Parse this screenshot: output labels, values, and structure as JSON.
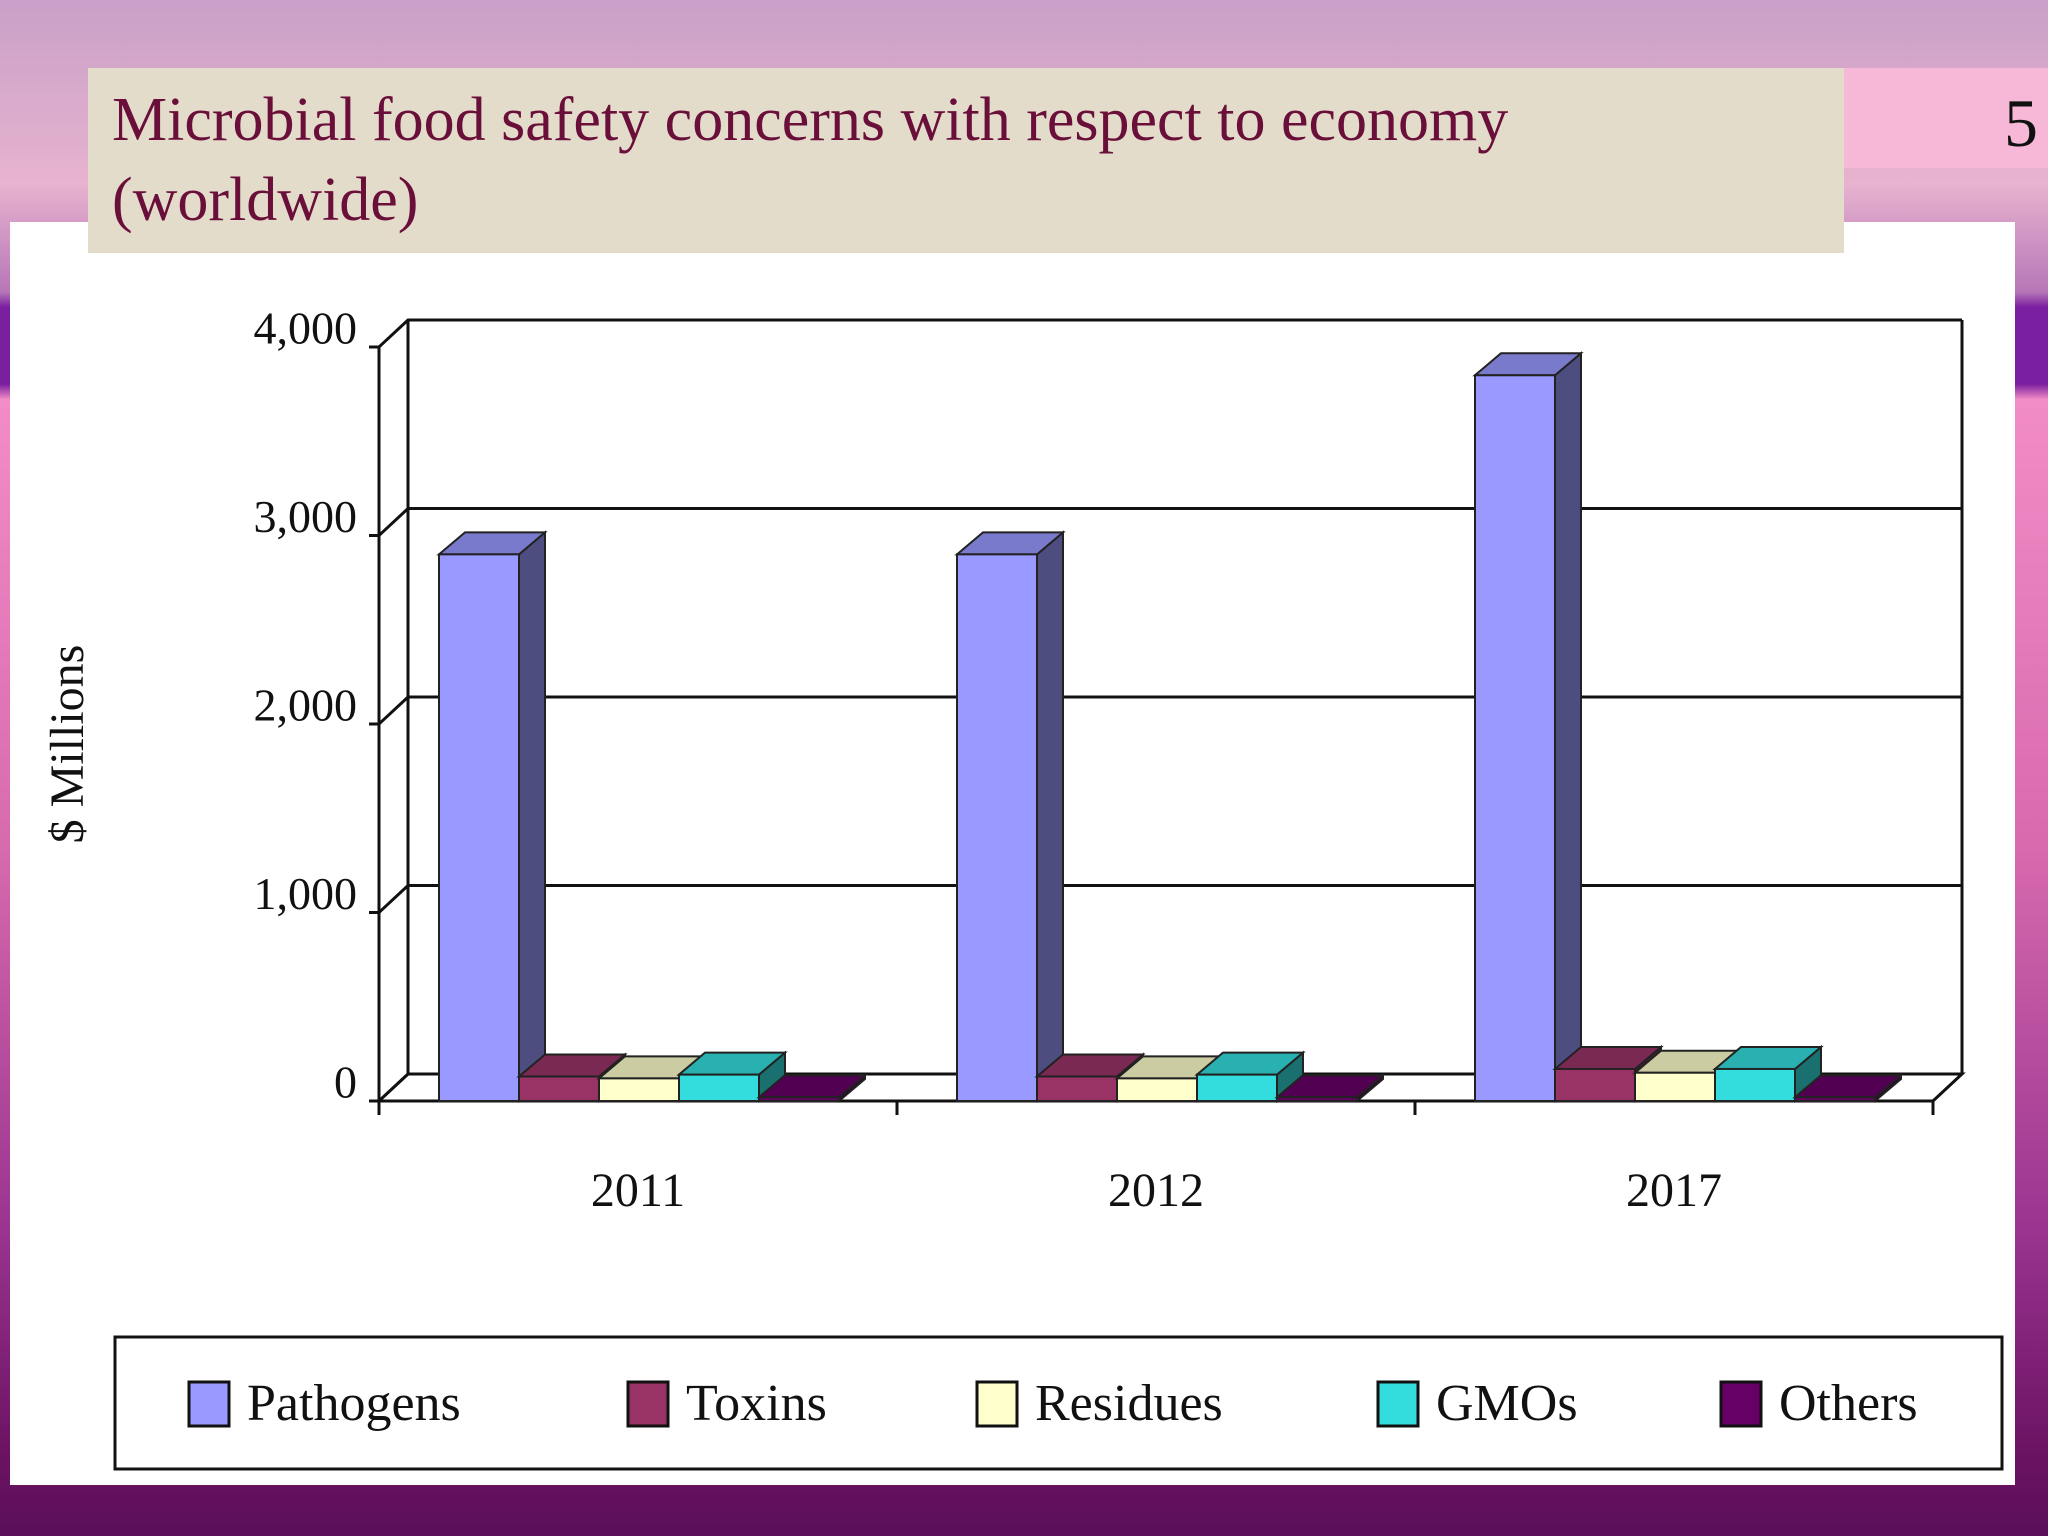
{
  "title": "Microbial food safety concerns with respect to economy (worldwide)",
  "slide_number": 5,
  "chart_data": {
    "type": "bar",
    "y_label": "$ Millions",
    "categories": [
      "2011",
      "2012",
      "2017"
    ],
    "series": [
      {
        "name": "Pathogens",
        "color": "#9999ff",
        "values": [
          2900,
          2900,
          3850
        ]
      },
      {
        "name": "Toxins",
        "color": "#993366",
        "values": [
          130,
          130,
          170
        ]
      },
      {
        "name": "Residues",
        "color": "#ffffcc",
        "values": [
          120,
          120,
          150
        ]
      },
      {
        "name": "GMOs",
        "color": "#33dddd",
        "values": [
          140,
          140,
          170
        ]
      },
      {
        "name": "Others",
        "color": "#660066",
        "values": [
          20,
          20,
          20
        ]
      }
    ],
    "ylim": [
      0,
      4000
    ],
    "yticks": [
      0,
      {
        "value": 1000,
        "label": "1,000"
      },
      {
        "value": 2000,
        "label": "2,000"
      },
      {
        "value": 3000,
        "label": "3,000"
      },
      {
        "value": 4000,
        "label": "4,000"
      }
    ],
    "grid": true,
    "legend": "bottom"
  }
}
